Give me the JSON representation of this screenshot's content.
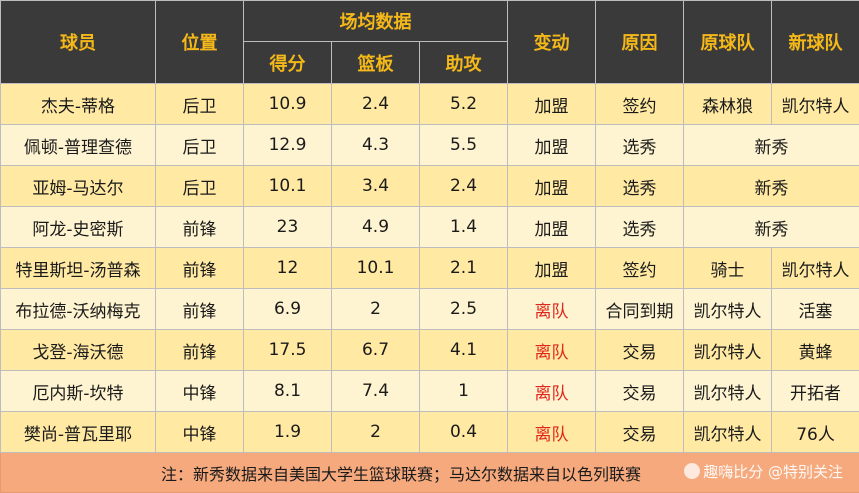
{
  "headers": {
    "player": "球员",
    "position": "位置",
    "stats_group": "场均数据",
    "points": "得分",
    "rebounds": "篮板",
    "assists": "助攻",
    "change": "变动",
    "reason": "原因",
    "from_team": "原球队",
    "to_team": "新球队"
  },
  "rows": [
    {
      "player": "杰夫-蒂格",
      "position": "后卫",
      "pts": "10.9",
      "reb": "2.4",
      "ast": "5.2",
      "change": "加盟",
      "reason": "签约",
      "from": "森林狼",
      "to": "凯尔特人",
      "merged": ""
    },
    {
      "player": "佩顿-普理查德",
      "position": "后卫",
      "pts": "12.9",
      "reb": "4.3",
      "ast": "5.5",
      "change": "加盟",
      "reason": "选秀",
      "from": "",
      "to": "",
      "merged": "新秀"
    },
    {
      "player": "亚姆-马达尔",
      "position": "后卫",
      "pts": "10.1",
      "reb": "3.4",
      "ast": "2.4",
      "change": "加盟",
      "reason": "选秀",
      "from": "",
      "to": "",
      "merged": "新秀"
    },
    {
      "player": "阿龙-史密斯",
      "position": "前锋",
      "pts": "23",
      "reb": "4.9",
      "ast": "1.4",
      "change": "加盟",
      "reason": "选秀",
      "from": "",
      "to": "",
      "merged": "新秀"
    },
    {
      "player": "特里斯坦-汤普森",
      "position": "前锋",
      "pts": "12",
      "reb": "10.1",
      "ast": "2.1",
      "change": "加盟",
      "reason": "签约",
      "from": "骑士",
      "to": "凯尔特人",
      "merged": ""
    },
    {
      "player": "布拉德-沃纳梅克",
      "position": "前锋",
      "pts": "6.9",
      "reb": "2",
      "ast": "2.5",
      "change": "离队",
      "reason": "合同到期",
      "from": "凯尔特人",
      "to": "活塞",
      "merged": ""
    },
    {
      "player": "戈登-海沃德",
      "position": "前锋",
      "pts": "17.5",
      "reb": "6.7",
      "ast": "4.1",
      "change": "离队",
      "reason": "交易",
      "from": "凯尔特人",
      "to": "黄蜂",
      "merged": ""
    },
    {
      "player": "厄内斯-坎特",
      "position": "中锋",
      "pts": "8.1",
      "reb": "7.4",
      "ast": "1",
      "change": "离队",
      "reason": "交易",
      "from": "凯尔特人",
      "to": "开拓者",
      "merged": ""
    },
    {
      "player": "樊尚-普瓦里耶",
      "position": "中锋",
      "pts": "1.9",
      "reb": "2",
      "ast": "0.4",
      "change": "离队",
      "reason": "交易",
      "from": "凯尔特人",
      "to": "76人",
      "merged": ""
    }
  ],
  "note": "注：新秀数据来自美国大学生篮球联赛；马达尔数据来自以色列联赛",
  "watermark": "趣嗨比分 @特别关注",
  "colors": {
    "header_bg": "#3a3a3a",
    "header_text": "#f5b819",
    "row_odd": "#ffe9a3",
    "row_even": "#fff4d1",
    "leave_text": "#e0261c",
    "note_bg": "#f5a97d"
  }
}
